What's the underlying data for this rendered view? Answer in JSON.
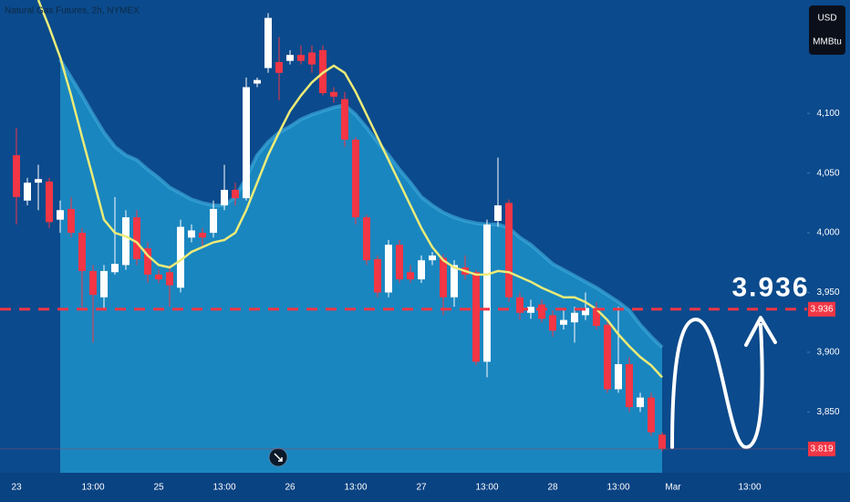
{
  "chart_data": {
    "type": "candlestick",
    "title": "Natural Gas Futures, 2h, NYMEX",
    "units": [
      "USD",
      "MMBtu"
    ],
    "categories": [
      "23",
      null,
      null,
      null,
      null,
      null,
      null,
      "13:00",
      null,
      null,
      null,
      null,
      null,
      "25",
      null,
      null,
      null,
      null,
      null,
      "13:00",
      null,
      null,
      null,
      null,
      null,
      "26",
      null,
      null,
      null,
      null,
      null,
      "13:00",
      null,
      null,
      null,
      null,
      null,
      "27",
      null,
      null,
      null,
      null,
      null,
      "13:00",
      null,
      null,
      null,
      null,
      null,
      "28",
      null,
      null,
      null,
      null,
      null,
      "13:00",
      null,
      null,
      null,
      null,
      "Mar",
      null,
      null,
      null,
      null,
      null,
      null,
      "13:00"
    ],
    "open": [
      4.065,
      4.027,
      4.042,
      4.043,
      4.011,
      4.02,
      4.0,
      3.968,
      3.946,
      3.967,
      3.973,
      4.013,
      3.987,
      3.965,
      3.967,
      3.954,
      3.996,
      4.0,
      4.0,
      4.023,
      4.036,
      4.029,
      4.125,
      4.138,
      4.143,
      4.144,
      4.149,
      4.151,
      4.153,
      4.118,
      4.112,
      4.078,
      4.013,
      3.978,
      3.95,
      3.99,
      3.967,
      3.961,
      3.977,
      3.979,
      3.946,
      3.971,
      3.967,
      3.892,
      4.01,
      4.025,
      3.946,
      3.933,
      3.94,
      3.931,
      3.923,
      3.925,
      3.931,
      3.937,
      3.923,
      3.869,
      3.89,
      3.854,
      3.862,
      3.831,
      null,
      null,
      null,
      null,
      null,
      null,
      null,
      null
    ],
    "high": [
      4.088,
      4.046,
      4.057,
      4.046,
      4.027,
      4.03,
      4.004,
      3.973,
      3.973,
      4.03,
      4.019,
      4.019,
      3.992,
      3.969,
      3.973,
      4.011,
      4.007,
      4.004,
      4.027,
      4.057,
      4.042,
      4.13,
      4.13,
      4.184,
      4.164,
      4.153,
      4.157,
      4.157,
      4.157,
      4.122,
      4.118,
      4.08,
      4.015,
      3.981,
      3.994,
      3.994,
      3.973,
      3.981,
      3.984,
      3.982,
      3.977,
      3.981,
      3.969,
      4.011,
      4.063,
      4.028,
      3.95,
      3.944,
      3.944,
      3.935,
      3.935,
      3.938,
      3.95,
      3.942,
      3.927,
      3.938,
      3.896,
      3.866,
      3.866,
      3.833,
      null,
      null,
      null,
      null,
      null,
      null,
      null,
      null
    ],
    "low": [
      4.007,
      4.023,
      4.019,
      4.004,
      4.0,
      3.996,
      3.938,
      3.908,
      3.935,
      3.965,
      3.969,
      3.973,
      3.958,
      3.958,
      3.938,
      3.95,
      3.992,
      3.988,
      3.996,
      4.019,
      4.023,
      4.027,
      4.122,
      4.134,
      4.111,
      4.141,
      4.141,
      4.134,
      4.115,
      4.109,
      4.072,
      4.007,
      3.973,
      3.946,
      3.946,
      3.958,
      3.958,
      3.958,
      3.973,
      3.931,
      3.938,
      3.961,
      3.889,
      3.879,
      4.005,
      3.942,
      3.927,
      3.928,
      3.925,
      3.913,
      3.919,
      3.908,
      3.927,
      3.919,
      3.866,
      3.866,
      3.85,
      3.85,
      3.83,
      3.817,
      null,
      null,
      null,
      null,
      null,
      null,
      null,
      null
    ],
    "close": [
      4.03,
      4.042,
      4.045,
      4.009,
      4.019,
      4.0,
      3.968,
      3.948,
      3.968,
      3.974,
      4.013,
      3.978,
      3.965,
      3.961,
      3.956,
      4.005,
      4.002,
      3.996,
      4.02,
      4.036,
      4.029,
      4.122,
      4.128,
      4.18,
      4.134,
      4.149,
      4.144,
      4.141,
      4.117,
      4.114,
      4.078,
      4.013,
      3.977,
      3.95,
      3.99,
      3.961,
      3.961,
      3.977,
      3.981,
      3.946,
      3.973,
      3.965,
      3.892,
      4.007,
      4.023,
      3.946,
      3.933,
      3.938,
      3.928,
      3.918,
      3.927,
      3.933,
      3.937,
      3.922,
      3.869,
      3.89,
      3.854,
      3.862,
      3.833,
      3.819,
      null,
      null,
      null,
      null,
      null,
      null,
      null,
      null
    ],
    "up_color": "#ffffff",
    "down_color": "#f23645",
    "ma": {
      "color": "#eceb78",
      "values": [
        null,
        null,
        4.195,
        4.172,
        4.147,
        4.115,
        4.08,
        4.046,
        4.011,
        4.0,
        3.997,
        3.992,
        3.981,
        3.973,
        3.971,
        3.977,
        3.984,
        3.988,
        3.992,
        3.994,
        4.0,
        4.019,
        4.042,
        4.065,
        4.084,
        4.102,
        4.115,
        4.126,
        4.134,
        4.14,
        4.134,
        4.118,
        4.099,
        4.08,
        4.061,
        4.042,
        4.023,
        4.004,
        3.988,
        3.977,
        3.971,
        3.968,
        3.965,
        3.965,
        3.968,
        3.967,
        3.963,
        3.959,
        3.954,
        3.95,
        3.946,
        3.946,
        3.942,
        3.936,
        3.927,
        3.915,
        3.905,
        3.896,
        3.889,
        3.879,
        null,
        null,
        null,
        null,
        null,
        null,
        null,
        null
      ]
    },
    "band": {
      "color": "#1a86bf",
      "values": [
        null,
        null,
        null,
        null,
        4.145,
        4.13,
        4.115,
        4.099,
        4.084,
        4.072,
        4.065,
        4.061,
        4.053,
        4.046,
        4.038,
        4.033,
        4.028,
        4.025,
        4.023,
        4.023,
        4.03,
        4.046,
        4.065,
        4.076,
        4.084,
        4.089,
        4.095,
        4.099,
        4.102,
        4.105,
        4.107,
        4.099,
        4.088,
        4.076,
        4.065,
        4.053,
        4.042,
        4.03,
        4.023,
        4.017,
        4.013,
        4.01,
        4.008,
        4.007,
        4.007,
        4.004,
        3.996,
        3.99,
        3.982,
        3.974,
        3.969,
        3.964,
        3.959,
        3.954,
        3.948,
        3.942,
        3.935,
        3.923,
        3.913,
        3.904,
        null,
        null,
        null,
        null,
        null,
        null,
        null,
        null
      ]
    },
    "ylim": [
      3.799,
      4.195
    ],
    "yticks": [
      {
        "value": 3.85,
        "label": "3,850"
      },
      {
        "value": 3.9,
        "label": "3,900"
      },
      {
        "value": 3.95,
        "label": "3,950"
      },
      {
        "value": 4.0,
        "label": "4,000"
      },
      {
        "value": 4.05,
        "label": "4,050"
      },
      {
        "value": 4.1,
        "label": "4,100"
      }
    ],
    "grid": false,
    "level": 3.936,
    "level_color": "#f23645"
  }
}
